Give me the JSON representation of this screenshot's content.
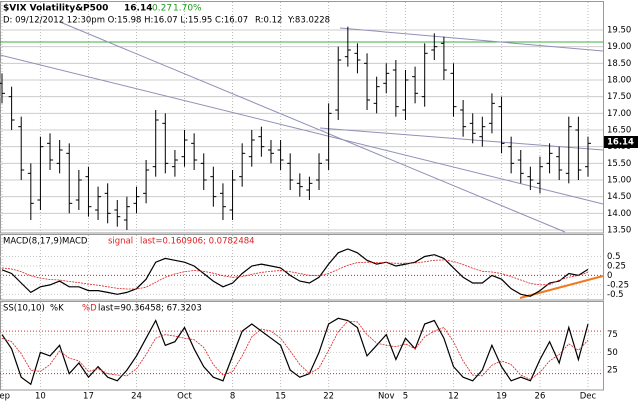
{
  "chart_data": [
    {
      "type": "ohlc",
      "title": "$VIX Volatility&P500",
      "last": 16.14,
      "change": "0.27",
      "change_pct": "1.70%",
      "info": "D: 09/12/2012 12:30pm O:15.98 H:16.07 L:15.95 C:16.07",
      "info_r": "R:0.12",
      "info_y": "Y:83.0228",
      "color": "#000000",
      "grid": true,
      "open": [
        17.9,
        17.5,
        16.6,
        15.2,
        14.4,
        16.1,
        15.5,
        15.8,
        14.4,
        15.1,
        14.1,
        14.6,
        14.1,
        13.8,
        14.3,
        14.6,
        15.4,
        16.7,
        15.4,
        15.7,
        16.1,
        15.5,
        15.1,
        14.6,
        14.1,
        15.1,
        15.7,
        16.3,
        15.9,
        15.9,
        15.5,
        14.9,
        14.7,
        15.0,
        15.6,
        17.1,
        18.7,
        18.8,
        18.5,
        17.3,
        17.9,
        18.3,
        17.1,
        18.1,
        17.5,
        18.9,
        19.1,
        18.2,
        17.1,
        16.7,
        16.3,
        16.7,
        17.2,
        16.0,
        15.6,
        15.1,
        14.9,
        15.5,
        15.7,
        15.2,
        16.5,
        15.4
      ],
      "high": [
        18.2,
        17.8,
        16.9,
        15.5,
        16.3,
        16.4,
        16.2,
        16.1,
        15.3,
        15.4,
        14.8,
        14.9,
        14.4,
        14.5,
        14.8,
        15.6,
        17.1,
        17.0,
        15.9,
        16.5,
        16.4,
        15.8,
        15.4,
        14.9,
        15.3,
        16.1,
        16.5,
        16.6,
        16.2,
        16.2,
        15.8,
        15.2,
        15.1,
        15.8,
        17.3,
        19.0,
        19.6,
        19.1,
        18.8,
        18.1,
        18.5,
        18.6,
        18.3,
        18.4,
        19.1,
        19.4,
        19.3,
        18.5,
        17.4,
        17.0,
        16.9,
        17.6,
        17.5,
        16.3,
        15.9,
        15.4,
        15.7,
        16.1,
        16.0,
        16.9,
        16.9,
        16.3
      ],
      "low": [
        17.3,
        16.5,
        15.0,
        13.8,
        14.1,
        15.3,
        15.2,
        14.0,
        14.1,
        13.9,
        13.8,
        13.7,
        13.6,
        13.5,
        14.0,
        14.3,
        15.1,
        15.2,
        15.1,
        15.4,
        15.3,
        14.7,
        14.2,
        13.8,
        13.8,
        14.8,
        15.4,
        15.7,
        15.5,
        15.3,
        14.7,
        14.5,
        14.4,
        14.7,
        15.3,
        16.8,
        18.4,
        18.2,
        17.1,
        17.0,
        17.6,
        16.9,
        16.8,
        17.3,
        17.2,
        18.6,
        18.0,
        16.9,
        16.3,
        16.1,
        16.0,
        16.4,
        15.8,
        15.2,
        14.9,
        14.7,
        14.6,
        15.2,
        15.0,
        14.9,
        15.0,
        15.1
      ],
      "close": [
        17.6,
        16.8,
        15.3,
        14.3,
        16.0,
        15.6,
        15.9,
        14.3,
        15.0,
        14.2,
        14.5,
        14.0,
        13.9,
        14.2,
        14.5,
        15.3,
        16.8,
        15.5,
        15.6,
        16.2,
        15.6,
        15.0,
        14.5,
        14.2,
        15.0,
        15.8,
        16.2,
        16.0,
        15.8,
        15.6,
        15.0,
        14.8,
        14.9,
        15.5,
        17.0,
        18.6,
        18.9,
        18.6,
        17.4,
        17.8,
        18.2,
        17.2,
        18.0,
        17.6,
        18.8,
        19.0,
        18.3,
        17.2,
        16.6,
        16.4,
        16.6,
        17.3,
        16.1,
        15.5,
        15.2,
        15.0,
        15.4,
        15.8,
        15.3,
        16.6,
        15.3,
        16.1
      ],
      "ylim": [
        13.41,
        20.34
      ],
      "yticks": [
        {
          "value": 13.5,
          "label": "13.50"
        },
        {
          "value": 14,
          "label": "14.00"
        },
        {
          "value": 14.5,
          "label": "14.50"
        },
        {
          "value": 15,
          "label": "15.00"
        },
        {
          "value": 15.5,
          "label": "15.50"
        },
        {
          "value": 16,
          "label": "16.00"
        },
        {
          "value": 16.5,
          "label": "16.50"
        },
        {
          "value": 17,
          "label": "17.00"
        },
        {
          "value": 17.5,
          "label": "17.50"
        },
        {
          "value": 18,
          "label": "18.00"
        },
        {
          "value": 18.5,
          "label": "18.50"
        },
        {
          "value": 19,
          "label": "19.00"
        },
        {
          "value": 19.5,
          "label": "19.50"
        }
      ]
    },
    {
      "type": "line",
      "title": "MACD(8,17,9)",
      "last_label": "last=0.160906; 0.0782484",
      "reference_lines": [
        0
      ],
      "series": [
        {
          "name": "MACD",
          "color": "#000000",
          "values": [
            0.15,
            0.05,
            -0.2,
            -0.45,
            -0.3,
            -0.25,
            -0.15,
            -0.3,
            -0.3,
            -0.4,
            -0.4,
            -0.45,
            -0.5,
            -0.45,
            -0.35,
            -0.1,
            0.35,
            0.45,
            0.4,
            0.35,
            0.25,
            0.05,
            -0.15,
            -0.3,
            -0.2,
            0.05,
            0.25,
            0.3,
            0.25,
            0.2,
            0.0,
            -0.15,
            -0.2,
            -0.05,
            0.3,
            0.6,
            0.7,
            0.6,
            0.4,
            0.3,
            0.35,
            0.25,
            0.3,
            0.35,
            0.5,
            0.55,
            0.45,
            0.2,
            -0.05,
            -0.2,
            -0.2,
            0.0,
            -0.1,
            -0.35,
            -0.5,
            -0.55,
            -0.4,
            -0.2,
            -0.15,
            0.05,
            0.0,
            0.16
          ]
        },
        {
          "name": "signal",
          "color": "#e02020",
          "values": [
            0.2,
            0.17,
            0.1,
            -0.01,
            -0.07,
            -0.11,
            -0.12,
            -0.16,
            -0.19,
            -0.23,
            -0.26,
            -0.3,
            -0.34,
            -0.36,
            -0.36,
            -0.31,
            -0.18,
            -0.05,
            0.04,
            0.1,
            0.13,
            0.11,
            0.06,
            -0.01,
            -0.05,
            -0.03,
            0.03,
            0.08,
            0.11,
            0.13,
            0.1,
            0.05,
            0.0,
            -0.01,
            0.05,
            0.16,
            0.27,
            0.34,
            0.35,
            0.34,
            0.34,
            0.32,
            0.32,
            0.33,
            0.36,
            0.4,
            0.41,
            0.37,
            0.29,
            0.19,
            0.11,
            0.09,
            0.05,
            -0.03,
            -0.12,
            -0.21,
            -0.25,
            -0.24,
            -0.12,
            -0.05,
            0.0,
            0.08
          ]
        }
      ],
      "ylim": [
        -0.65,
        1.07
      ],
      "yticks": [
        0.5,
        0.25,
        0,
        -0.25,
        -0.5
      ]
    },
    {
      "type": "line",
      "title": "SS(10,10)",
      "last_label": "last=90.36458; 67.3203",
      "reference_lines": [
        80,
        20
      ],
      "series": [
        {
          "name": "%K",
          "color": "#000000",
          "values": [
            75,
            55,
            15,
            5,
            50,
            45,
            60,
            20,
            35,
            15,
            30,
            15,
            10,
            25,
            45,
            70,
            95,
            60,
            65,
            85,
            55,
            30,
            15,
            10,
            45,
            80,
            90,
            80,
            70,
            60,
            25,
            15,
            20,
            50,
            90,
            98,
            95,
            85,
            45,
            60,
            75,
            40,
            70,
            55,
            90,
            95,
            70,
            30,
            15,
            10,
            25,
            60,
            30,
            10,
            15,
            10,
            40,
            65,
            35,
            85,
            40,
            90
          ]
        },
        {
          "name": "%D",
          "color": "#e02020",
          "values": [
            70,
            65,
            48,
            25,
            23,
            33,
            52,
            42,
            38,
            23,
            27,
            20,
            18,
            17,
            27,
            47,
            70,
            75,
            73,
            70,
            68,
            57,
            33,
            18,
            23,
            45,
            72,
            83,
            80,
            70,
            52,
            33,
            20,
            28,
            53,
            79,
            94,
            93,
            75,
            63,
            60,
            58,
            62,
            55,
            72,
            80,
            85,
            65,
            38,
            18,
            17,
            32,
            38,
            33,
            18,
            12,
            22,
            38,
            47,
            62,
            53,
            67
          ]
        }
      ],
      "categories": [
        "Sep",
        null,
        null,
        null,
        "10",
        null,
        null,
        null,
        null,
        "17",
        null,
        null,
        null,
        null,
        "24",
        null,
        null,
        null,
        null,
        "Oct",
        null,
        null,
        null,
        null,
        "8",
        null,
        null,
        null,
        null,
        "15",
        null,
        null,
        null,
        null,
        "22",
        null,
        null,
        null,
        null,
        null,
        "Nov",
        null,
        "5",
        null,
        null,
        null,
        null,
        "12",
        null,
        null,
        null,
        null,
        "19",
        null,
        null,
        null,
        "26",
        null,
        null,
        null,
        null,
        "Dec"
      ],
      "ylim": [
        -3,
        121
      ],
      "yticks": [
        25,
        50,
        75
      ]
    }
  ]
}
